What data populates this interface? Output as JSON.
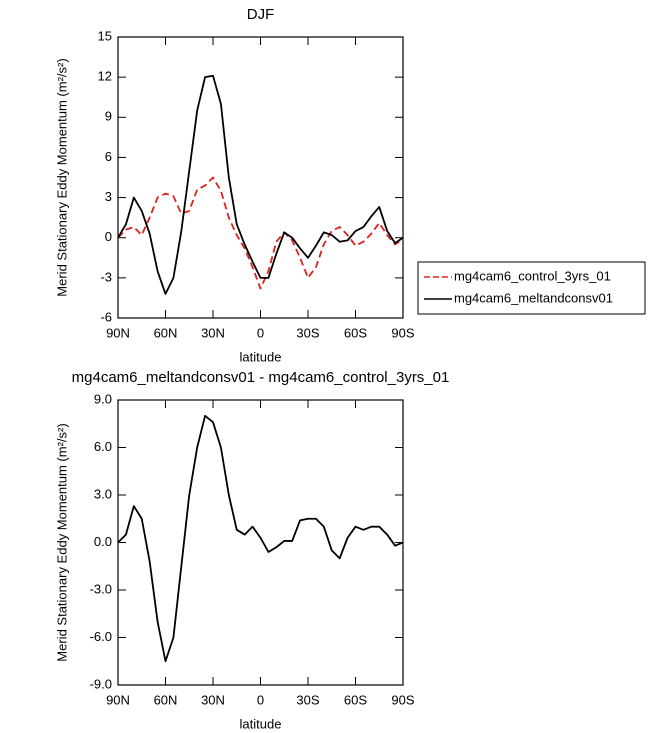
{
  "chart_data": [
    {
      "type": "line",
      "title": "DJF",
      "xlabel": "latitude",
      "ylabel": "Merid Stationary Eddy Momentum (m²/s²)",
      "x": [
        90,
        85,
        80,
        75,
        70,
        65,
        60,
        55,
        50,
        45,
        40,
        35,
        30,
        25,
        20,
        15,
        10,
        5,
        0,
        -5,
        -10,
        -15,
        -20,
        -25,
        -30,
        -35,
        -40,
        -45,
        -50,
        -55,
        -60,
        -65,
        -70,
        -75,
        -80,
        -85,
        -90
      ],
      "xlim": [
        90,
        -90
      ],
      "xticks": [
        {
          "value": 90,
          "label": "90N"
        },
        {
          "value": 60,
          "label": "60N"
        },
        {
          "value": 30,
          "label": "30N"
        },
        0,
        {
          "value": -30,
          "label": "30S"
        },
        {
          "value": -60,
          "label": "60S"
        },
        {
          "value": -90,
          "label": "90S"
        }
      ],
      "ylim": [
        -6,
        15
      ],
      "yticks": [
        -6,
        -3,
        0,
        3,
        6,
        9,
        12,
        15
      ],
      "legend": "right",
      "series": [
        {
          "name": "mg4cam6_control_3yrs_01",
          "color": "#e0201b",
          "line_style": "dashed",
          "values": [
            0,
            0.6,
            0.8,
            0.2,
            1.5,
            3.0,
            3.3,
            3.1,
            1.8,
            2.0,
            3.6,
            3.9,
            4.5,
            3.5,
            1.5,
            0.2,
            -0.8,
            -2.2,
            -3.8,
            -2.5,
            -0.3,
            0.4,
            -0.2,
            -1.5,
            -3.0,
            -2.2,
            -0.5,
            0.5,
            0.8,
            0.2,
            -0.6,
            -0.3,
            0.3,
            1.1,
            0.2,
            -0.5,
            -0.1
          ]
        },
        {
          "name": "mg4cam6_meltandconsv01",
          "color": "#000000",
          "line_style": "solid",
          "values": [
            0,
            1.0,
            3.0,
            2.0,
            0.3,
            -2.5,
            -4.2,
            -3.0,
            0.5,
            5.0,
            9.5,
            12.0,
            12.1,
            10.0,
            4.5,
            1.0,
            -0.5,
            -1.8,
            -3.0,
            -3.0,
            -1.2,
            0.4,
            0.0,
            -0.8,
            -1.5,
            -0.6,
            0.4,
            0.2,
            -0.3,
            -0.2,
            0.5,
            0.8,
            1.6,
            2.3,
            0.5,
            -0.4,
            0.0
          ]
        }
      ]
    },
    {
      "type": "line",
      "title": "mg4cam6_meltandconsv01 - mg4cam6_control_3yrs_01",
      "xlabel": "latitude",
      "ylabel": "Merid Stationary Eddy Momentum (m²/s²)",
      "x": [
        90,
        85,
        80,
        75,
        70,
        65,
        60,
        55,
        50,
        45,
        40,
        35,
        30,
        25,
        20,
        15,
        10,
        5,
        0,
        -5,
        -10,
        -15,
        -20,
        -25,
        -30,
        -35,
        -40,
        -45,
        -50,
        -55,
        -60,
        -65,
        -70,
        -75,
        -80,
        -85,
        -90
      ],
      "xlim": [
        90,
        -90
      ],
      "xticks": [
        {
          "value": 90,
          "label": "90N"
        },
        {
          "value": 60,
          "label": "60N"
        },
        {
          "value": 30,
          "label": "30N"
        },
        0,
        {
          "value": -30,
          "label": "30S"
        },
        {
          "value": -60,
          "label": "60S"
        },
        {
          "value": -90,
          "label": "90S"
        }
      ],
      "ylim": [
        -9,
        9
      ],
      "yticks": [
        {
          "value": -9,
          "label": "-9.0"
        },
        {
          "value": -6,
          "label": "-6.0"
        },
        {
          "value": -3,
          "label": "-3.0"
        },
        {
          "value": 0,
          "label": "0.0"
        },
        {
          "value": 3,
          "label": "3.0"
        },
        {
          "value": 6,
          "label": "6.0"
        },
        {
          "value": 9,
          "label": "9.0"
        }
      ],
      "series": [
        {
          "color": "#000000",
          "line_style": "solid",
          "values": [
            0,
            0.5,
            2.3,
            1.5,
            -1.2,
            -5.0,
            -7.5,
            -6.0,
            -1.5,
            3.0,
            6.0,
            8.0,
            7.6,
            6.0,
            3.0,
            0.8,
            0.5,
            1.0,
            0.3,
            -0.6,
            -0.3,
            0.1,
            0.1,
            1.4,
            1.5,
            1.5,
            1.0,
            -0.5,
            -1.0,
            0.3,
            1.0,
            0.8,
            1.0,
            1.0,
            0.5,
            -0.2,
            0
          ]
        }
      ]
    }
  ]
}
